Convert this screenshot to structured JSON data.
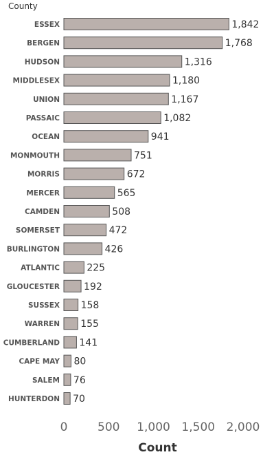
{
  "chart_data": {
    "type": "bar",
    "orientation": "horizontal",
    "category_header": "County",
    "categories": [
      "ESSEX",
      "BERGEN",
      "HUDSON",
      "MIDDLESEX",
      "UNION",
      "PASSAIC",
      "OCEAN",
      "MONMOUTH",
      "MORRIS",
      "MERCER",
      "CAMDEN",
      "SOMERSET",
      "BURLINGTON",
      "ATLANTIC",
      "GLOUCESTER",
      "SUSSEX",
      "WARREN",
      "CUMBERLAND",
      "CAPE MAY",
      "SALEM",
      "HUNTERDON"
    ],
    "values": [
      1842,
      1768,
      1316,
      1180,
      1167,
      1082,
      941,
      751,
      672,
      565,
      508,
      472,
      426,
      225,
      192,
      158,
      155,
      141,
      80,
      76,
      70
    ],
    "value_labels": [
      "1,842",
      "1,768",
      "1,316",
      "1,180",
      "1,167",
      "1,082",
      "941",
      "751",
      "672",
      "565",
      "508",
      "472",
      "426",
      "225",
      "192",
      "158",
      "155",
      "141",
      "80",
      "76",
      "70"
    ],
    "xlabel": "Count",
    "xlim": [
      0,
      2000
    ],
    "x_ticks": [
      0,
      500,
      1000,
      1500,
      2000
    ],
    "x_tick_labels": [
      "0",
      "500",
      "1,000",
      "1,500",
      "2,000"
    ],
    "grid": false,
    "legend": "none",
    "bar_color": "#bab0ac",
    "bar_outline": "#555555"
  }
}
